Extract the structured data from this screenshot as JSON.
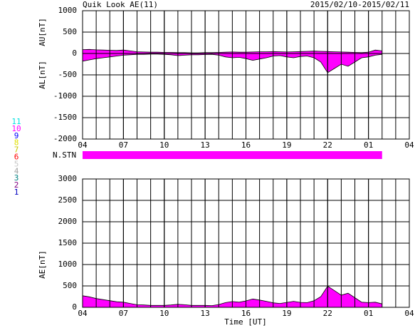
{
  "title": "Quik Look AE(11)",
  "date_range": "2015/02/10-2015/02/11",
  "station_label": "N.STN",
  "x_label": "Time [UT]",
  "station_legend": [
    {
      "label": "11",
      "color": "#00e0e0"
    },
    {
      "label": "10",
      "color": "#ff00ff"
    },
    {
      "label": "9",
      "color": "#0000ff"
    },
    {
      "label": "8",
      "color": "#e0e000"
    },
    {
      "label": "7",
      "color": "#c8c800"
    },
    {
      "label": "6",
      "color": "#ff0000"
    },
    {
      "label": "5",
      "color": "#c8c8c8"
    },
    {
      "label": "4",
      "color": "#a0a0a0"
    },
    {
      "label": "3",
      "color": "#008080"
    },
    {
      "label": "2",
      "color": "#800080"
    },
    {
      "label": "1",
      "color": "#0000c0"
    }
  ],
  "chart_data": [
    {
      "type": "band",
      "y_labels": [
        "AU[nT]",
        "AL[nT]"
      ],
      "fill": "#ff00ff",
      "xlim": [
        0,
        24
      ],
      "xticks": [
        {
          "value": 0,
          "label": "04"
        },
        {
          "value": 3,
          "label": "07"
        },
        {
          "value": 6,
          "label": "10"
        },
        {
          "value": 9,
          "label": "13"
        },
        {
          "value": 12,
          "label": "16"
        },
        {
          "value": 15,
          "label": "19"
        },
        {
          "value": 18,
          "label": "22"
        },
        {
          "value": 21,
          "label": "01"
        },
        {
          "value": 24,
          "label": "04"
        }
      ],
      "ylim": [
        -2000,
        1000
      ],
      "yticks": [
        1000,
        500,
        0,
        -500,
        -1000,
        -1500,
        -2000
      ],
      "x": [
        0,
        0.5,
        1,
        1.5,
        2,
        2.5,
        3,
        3.5,
        4,
        4.5,
        5,
        5.5,
        6,
        6.5,
        7,
        7.5,
        8,
        8.5,
        9,
        9.5,
        10,
        10.5,
        11,
        11.5,
        12,
        12.5,
        13,
        13.5,
        14,
        14.5,
        15,
        15.5,
        16,
        16.5,
        17,
        17.5,
        18,
        18.5,
        19,
        19.5,
        20,
        20.5,
        21,
        21.5,
        22
      ],
      "series": [
        {
          "name": "AU",
          "values": [
            90,
            95,
            85,
            80,
            75,
            70,
            80,
            60,
            40,
            35,
            30,
            30,
            25,
            25,
            20,
            20,
            15,
            15,
            20,
            20,
            25,
            30,
            35,
            30,
            30,
            35,
            40,
            40,
            45,
            40,
            35,
            40,
            45,
            50,
            55,
            50,
            45,
            40,
            35,
            30,
            25,
            20,
            30,
            80,
            60
          ]
        },
        {
          "name": "AL",
          "values": [
            -180,
            -150,
            -120,
            -100,
            -80,
            -60,
            -40,
            -30,
            -20,
            -20,
            -15,
            -15,
            -20,
            -30,
            -50,
            -40,
            -30,
            -30,
            -25,
            -20,
            -40,
            -80,
            -100,
            -90,
            -120,
            -160,
            -130,
            -100,
            -60,
            -50,
            -80,
            -100,
            -70,
            -60,
            -100,
            -200,
            -450,
            -350,
            -250,
            -300,
            -200,
            -100,
            -80,
            -40,
            -20
          ]
        }
      ]
    },
    {
      "type": "area",
      "y_label": "AE[nT]",
      "fill": "#ff00ff",
      "xlim": [
        0,
        24
      ],
      "xticks": [
        {
          "value": 0,
          "label": "04"
        },
        {
          "value": 3,
          "label": "07"
        },
        {
          "value": 6,
          "label": "10"
        },
        {
          "value": 9,
          "label": "13"
        },
        {
          "value": 12,
          "label": "16"
        },
        {
          "value": 15,
          "label": "19"
        },
        {
          "value": 18,
          "label": "22"
        },
        {
          "value": 21,
          "label": "01"
        },
        {
          "value": 24,
          "label": "04"
        }
      ],
      "ylim": [
        0,
        3000
      ],
      "yticks": [
        3000,
        2500,
        2000,
        1500,
        1000,
        500,
        0
      ],
      "x": [
        0,
        0.5,
        1,
        1.5,
        2,
        2.5,
        3,
        3.5,
        4,
        4.5,
        5,
        5.5,
        6,
        6.5,
        7,
        7.5,
        8,
        8.5,
        9,
        9.5,
        10,
        10.5,
        11,
        11.5,
        12,
        12.5,
        13,
        13.5,
        14,
        14.5,
        15,
        15.5,
        16,
        16.5,
        17,
        17.5,
        18,
        18.5,
        19,
        19.5,
        20,
        20.5,
        21,
        21.5,
        22
      ],
      "series": [
        {
          "name": "AE",
          "values": [
            270,
            245,
            205,
            180,
            155,
            130,
            120,
            90,
            60,
            55,
            45,
            45,
            45,
            55,
            70,
            60,
            45,
            45,
            45,
            40,
            65,
            110,
            135,
            120,
            150,
            195,
            170,
            140,
            105,
            90,
            115,
            140,
            115,
            110,
            155,
            250,
            495,
            390,
            285,
            330,
            225,
            120,
            110,
            120,
            80
          ]
        }
      ]
    }
  ]
}
